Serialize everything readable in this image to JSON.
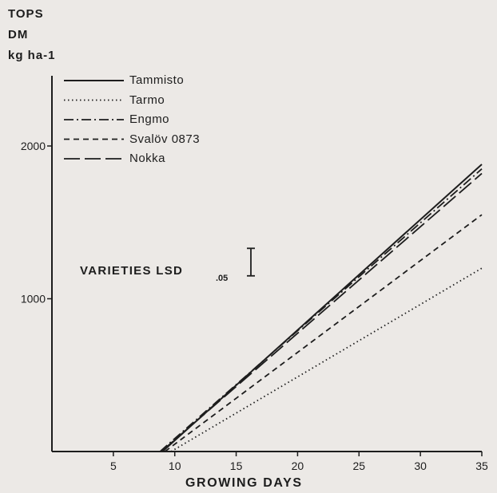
{
  "chart_data": {
    "type": "line",
    "ylabel_lines": [
      "TOPS",
      "DM",
      "kg ha-1"
    ],
    "xlabel": "GROWING DAYS",
    "xlim": [
      0,
      35
    ],
    "ylim": [
      0,
      2000
    ],
    "xticks": [
      5,
      10,
      15,
      20,
      25,
      30,
      35
    ],
    "yticks": [
      1000,
      2000
    ],
    "series": [
      {
        "name": "Tammisto",
        "style": "solid",
        "x": [
          9,
          35
        ],
        "y": [
          0,
          1880
        ]
      },
      {
        "name": "Tarmo",
        "style": "dotted",
        "x": [
          9.7,
          35
        ],
        "y": [
          0,
          1200
        ]
      },
      {
        "name": "Engmo",
        "style": "dashdot",
        "x": [
          8.8,
          35
        ],
        "y": [
          0,
          1850
        ]
      },
      {
        "name": "Svalöv 0873",
        "style": "dashed",
        "x": [
          9.2,
          35
        ],
        "y": [
          0,
          1550
        ]
      },
      {
        "name": "Nokka",
        "style": "longdash",
        "x": [
          8.9,
          35
        ],
        "y": [
          0,
          1820
        ]
      }
    ],
    "annotation": {
      "text": "VARIETIES LSD",
      "subscript": ".05",
      "lsd_y_low": 1150,
      "lsd_y_high": 1330,
      "x": 16.2
    }
  }
}
